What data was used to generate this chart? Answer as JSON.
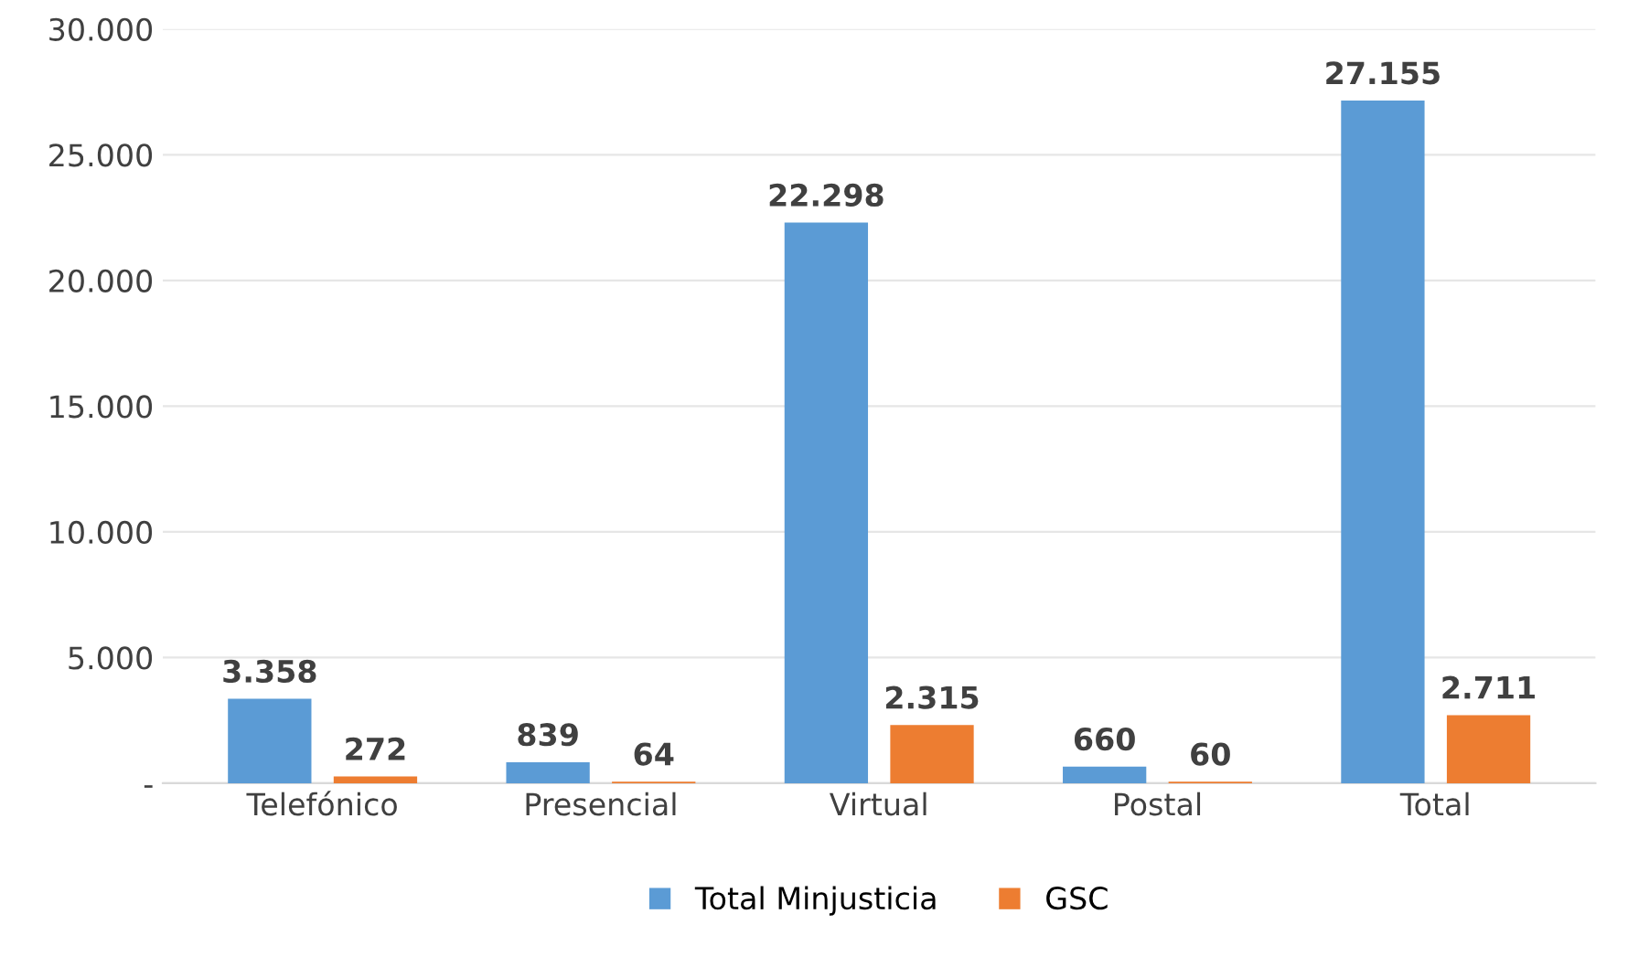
{
  "chart_data": {
    "type": "bar",
    "categories": [
      "Telefónico",
      "Presencial",
      "Virtual",
      "Postal",
      "Total"
    ],
    "series": [
      {
        "name": "Total Minjusticia",
        "color": "#5b9bd5",
        "values": [
          3358,
          839,
          22298,
          660,
          27155
        ],
        "value_labels": [
          "3.358",
          "839",
          "22.298",
          "660",
          "27.155"
        ]
      },
      {
        "name": "GSC",
        "color": "#ed7d31",
        "values": [
          272,
          64,
          2315,
          60,
          2711
        ],
        "value_labels": [
          "272",
          "64",
          "2.315",
          "60",
          "2.711"
        ]
      }
    ],
    "ylim": [
      0,
      30000
    ],
    "yticks": [
      {
        "value": 0,
        "label": "-"
      },
      {
        "value": 5000,
        "label": "5.000"
      },
      {
        "value": 10000,
        "label": "10.000"
      },
      {
        "value": 15000,
        "label": "15.000"
      },
      {
        "value": 20000,
        "label": "20.000"
      },
      {
        "value": 25000,
        "label": "25.000"
      },
      {
        "value": 30000,
        "label": "30.000"
      }
    ],
    "grid": "y",
    "legend": "bottom"
  }
}
